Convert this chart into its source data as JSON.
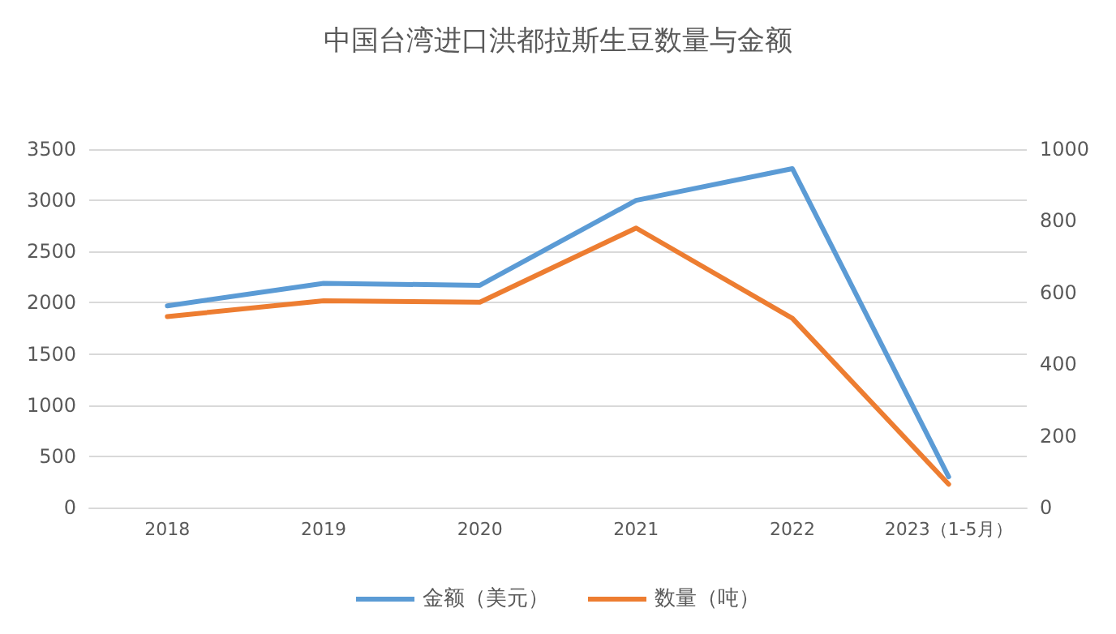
{
  "chart_data": {
    "type": "line",
    "title": "中国台湾进口洪都拉斯生豆数量与金额",
    "categories": [
      "2018",
      "2019",
      "2020",
      "2021",
      "2022",
      "2023（1-5月）"
    ],
    "series": [
      {
        "name": "金额（美元）",
        "color": "#5b9bd5",
        "values": [
          1970,
          2190,
          2170,
          3000,
          3310,
          300
        ]
      },
      {
        "name": "数量（吨）",
        "color": "#ed7d31",
        "axis": "y2",
        "values": [
          533,
          577,
          573,
          780,
          528,
          65
        ]
      }
    ],
    "ylim": [
      0,
      3500
    ],
    "yticks": [
      0,
      500,
      1000,
      1500,
      2000,
      2500,
      3000,
      3500
    ],
    "y2lim": [
      0,
      1000
    ],
    "y2ticks": [
      0,
      200,
      400,
      600,
      800,
      1000
    ],
    "grid": "y",
    "legend": "bottom",
    "marker": "none",
    "line_style": "solid"
  }
}
